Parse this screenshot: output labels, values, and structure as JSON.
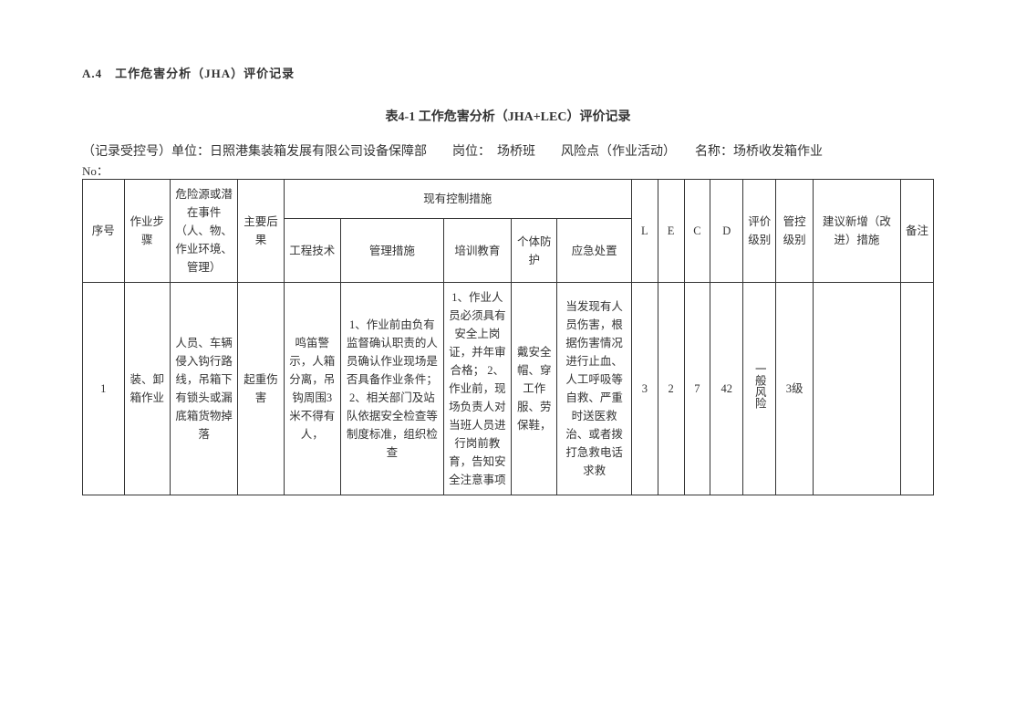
{
  "heading": "A.4　工作危害分析（JHA）评价记录",
  "table_title": "表4-1 工作危害分析（JHA+LEC）评价记录",
  "meta": {
    "line": "（记录受控号）单位：日照港集装箱发展有限公司设备保障部　　岗位：　场桥班　　风险点（作业活动）　　名称：场桥收发箱作业",
    "no_label": "No："
  },
  "headers": {
    "seq": "序号",
    "step": "作业步骤",
    "hazard": "危险源或潜在事件（人、物、作业环境、管理）",
    "consequence": "主要后果",
    "controls_group": "现有控制措施",
    "engineering": "工程技术",
    "management": "管理措施",
    "training": "培训教育",
    "ppe": "个体防护",
    "emergency": "应急处置",
    "L": "L",
    "E": "E",
    "C": "C",
    "D": "D",
    "eval_level": "评价级别",
    "ctrl_level": "管控级别",
    "suggestion": "建议新增（改进）措施",
    "remark": "备注"
  },
  "rows": [
    {
      "seq": "1",
      "step": "装、卸箱作业",
      "hazard": "人员、车辆侵入钩行路线，吊箱下有锁头或漏底箱货物掉落",
      "consequence": "起重伤害",
      "engineering": "鸣笛警示，人箱分离，吊钩周围3米不得有人，",
      "management": "1、作业前由负有监督确认职责的人员确认作业现场是否具备作业条件；\n2、相关部门及站队依据安全检查等制度标准，组织检查",
      "training": "1、作业人员必须具有安全上岗证，并年审合格；\n2、作业前，现场负责人对当班人员进行岗前教育，告知安全注意事项",
      "ppe": "戴安全帽、穿工作服、劳保鞋，",
      "emergency": "当发现有人员伤害，根据伤害情况进行止血、人工呼吸等自救、严重时送医救治、或者拨打急救电话求救",
      "L": "3",
      "E": "2",
      "C": "7",
      "D": "42",
      "eval_level": "一般风险",
      "ctrl_level": "3级",
      "suggestion": "",
      "remark": ""
    }
  ],
  "style": {
    "text_color": "#333333",
    "border_color": "#333333",
    "background": "#ffffff",
    "body_fontsize": 13,
    "title_fontsize": 14,
    "cell_fontsize": 12.5
  }
}
